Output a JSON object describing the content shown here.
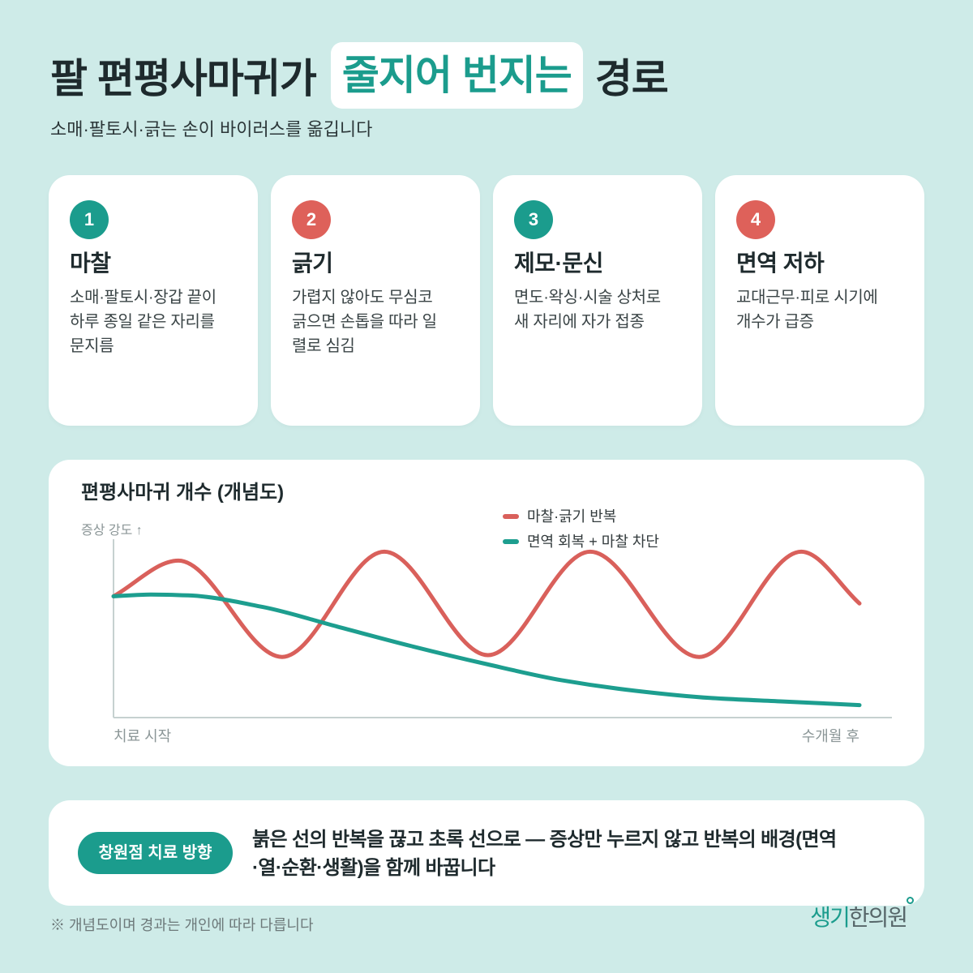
{
  "theme": {
    "bg": "#ceebe8",
    "teal": "#1b9c8d",
    "coral": "#de615a",
    "ink": "#1e2a2d"
  },
  "title": {
    "before": "팔 편평사마귀가",
    "highlight": "줄지어 번지는",
    "after": "경로"
  },
  "subtitle": "소매·팔토시·긁는 손이 바이러스를 옮깁니다",
  "cards": [
    {
      "number": "1",
      "badge_color": "#1b9c8d",
      "title": "마찰",
      "lines": [
        "소매·팔토시·장갑 끝이",
        "하루 종일 같은 자리를",
        "문지름"
      ]
    },
    {
      "number": "2",
      "badge_color": "#de615a",
      "title": "긁기",
      "lines": [
        "가렵지 않아도 무심코",
        "긁으면 손톱을 따라 일",
        "렬로 심김"
      ]
    },
    {
      "number": "3",
      "badge_color": "#1b9c8d",
      "title": "제모·문신",
      "lines": [
        "면도·왁싱·시술 상처로",
        "새 자리에 자가 접종"
      ]
    },
    {
      "number": "4",
      "badge_color": "#de615a",
      "title": "면역 저하",
      "lines": [
        "교대근무·피로 시기에",
        "개수가 급증"
      ]
    }
  ],
  "chart_data": {
    "type": "line",
    "title": "편평사마귀 개수 (개념도)",
    "ylabel": "증상 강도 ↑",
    "x_tick_labels": [
      "치료 시작",
      "수개월 후"
    ],
    "xlim": [
      0,
      100
    ],
    "ylim": [
      0,
      100
    ],
    "grid": false,
    "legend": "top-right",
    "series": [
      {
        "name": "마찰·긁기 반복",
        "color": "#d9605b",
        "points": [
          [
            0,
            68
          ],
          [
            8.7,
            88
          ],
          [
            22.6,
            34
          ],
          [
            36.3,
            93
          ],
          [
            50.2,
            35
          ],
          [
            63.9,
            93
          ],
          [
            78.5,
            34
          ],
          [
            92.2,
            93
          ],
          [
            100,
            64
          ]
        ]
      },
      {
        "name": "면역 회복 + 마찰 차단",
        "color": "#1d9e8f",
        "points": [
          [
            0,
            68
          ],
          [
            5,
            69
          ],
          [
            10,
            68.5
          ],
          [
            20,
            62
          ],
          [
            30,
            51
          ],
          [
            40,
            40
          ],
          [
            50,
            30
          ],
          [
            60,
            21
          ],
          [
            70,
            15
          ],
          [
            80,
            11
          ],
          [
            90,
            9
          ],
          [
            100,
            7
          ]
        ]
      }
    ]
  },
  "callout": {
    "badge": "창원점 치료 방향",
    "lines": [
      "붉은 선의 반복을 끊고 초록 선으로 — 증상만 누르지 않고 반복의 배경(면역",
      "·열·순환·생활)을 함께 바꿉니다"
    ]
  },
  "footnote": "※ 개념도이며 경과는 개인에 따라 다릅니다",
  "logo": {
    "part1": "생기",
    "part2": "한의원"
  }
}
